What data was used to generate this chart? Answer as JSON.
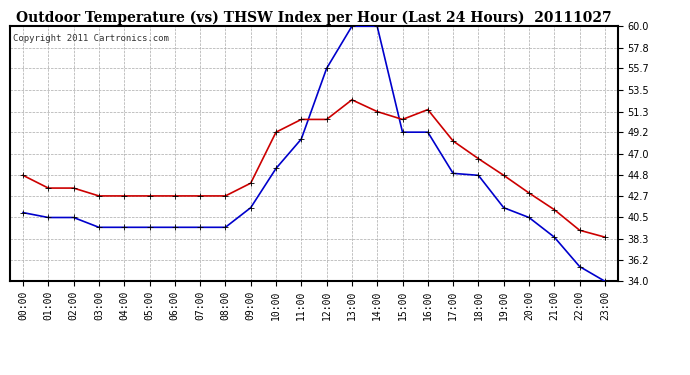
{
  "title": "Outdoor Temperature (vs) THSW Index per Hour (Last 24 Hours)  20111027",
  "copyright": "Copyright 2011 Cartronics.com",
  "background_color": "#ffffff",
  "plot_bg_color": "#ffffff",
  "grid_color": "#aaaaaa",
  "hours": [
    "00:00",
    "01:00",
    "02:00",
    "03:00",
    "04:00",
    "05:00",
    "06:00",
    "07:00",
    "08:00",
    "09:00",
    "10:00",
    "11:00",
    "12:00",
    "13:00",
    "14:00",
    "15:00",
    "16:00",
    "17:00",
    "18:00",
    "19:00",
    "20:00",
    "21:00",
    "22:00",
    "23:00"
  ],
  "blue_data": [
    41.0,
    40.5,
    40.5,
    39.5,
    39.5,
    39.5,
    39.5,
    39.5,
    39.5,
    41.5,
    45.5,
    48.5,
    55.7,
    60.0,
    60.0,
    49.2,
    49.2,
    45.0,
    44.8,
    41.5,
    40.5,
    38.5,
    35.5,
    34.0
  ],
  "red_data": [
    44.8,
    43.5,
    43.5,
    42.7,
    42.7,
    42.7,
    42.7,
    42.7,
    42.7,
    44.0,
    49.2,
    50.5,
    50.5,
    52.5,
    51.3,
    50.5,
    51.5,
    48.3,
    46.5,
    44.8,
    43.0,
    41.3,
    39.2,
    38.5
  ],
  "blue_color": "#0000cc",
  "red_color": "#cc0000",
  "ylim_min": 34.0,
  "ylim_max": 60.0,
  "yticks": [
    34.0,
    36.2,
    38.3,
    40.5,
    42.7,
    44.8,
    47.0,
    49.2,
    51.3,
    53.5,
    55.7,
    57.8,
    60.0
  ],
  "marker": "+",
  "marker_size": 5,
  "linewidth": 1.2,
  "title_fontsize": 10,
  "tick_fontsize": 7,
  "copyright_fontsize": 6.5
}
